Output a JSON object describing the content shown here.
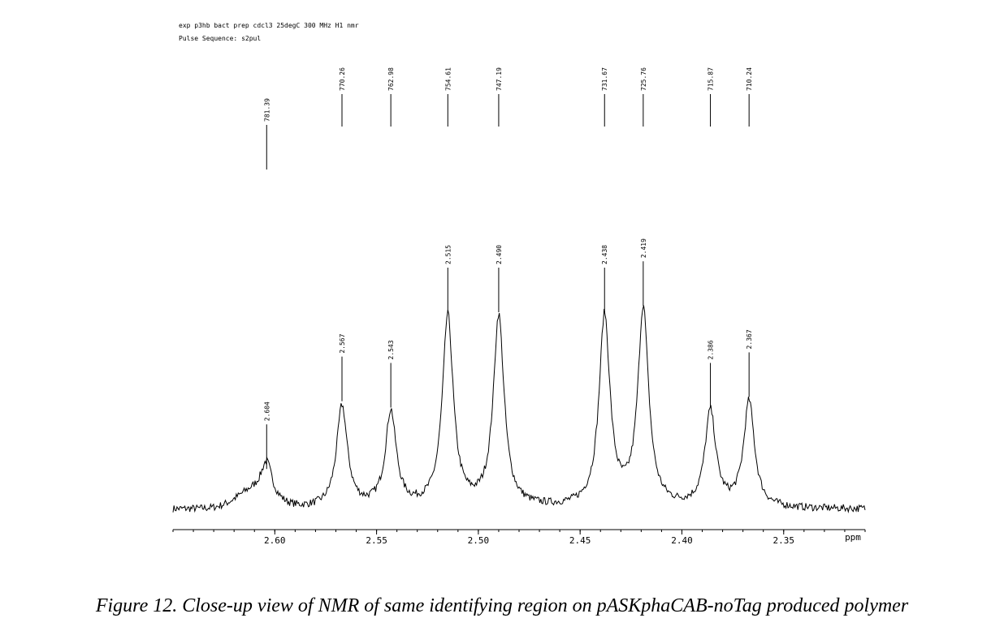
{
  "header": {
    "line1": "exp p3hb bact prep cdcl3 25degC 300 MHz H1 nmr",
    "line2": "Pulse Sequence: s2pul"
  },
  "caption": "Figure 12. Close-up view of NMR of same identifying region on pASKphaCAB-noTag produced polymer",
  "colors": {
    "trace": "#000000",
    "background": "#ffffff"
  },
  "chart_data": {
    "type": "line",
    "title": "",
    "xlabel": "ppm",
    "ylabel": "",
    "xlim": [
      2.65,
      2.31
    ],
    "x_reversed": true,
    "grid": false,
    "x_ticks": [
      2.6,
      2.55,
      2.5,
      2.45,
      2.4,
      2.35
    ],
    "x_tick_labels": [
      "2.60",
      "2.55",
      "2.50",
      "2.45",
      "2.40",
      "2.35"
    ],
    "ylim": [
      0,
      1
    ],
    "y_unit": "relative intensity",
    "baseline": 0.1,
    "peaks": [
      {
        "ppm": 2.604,
        "ppm_label": "2.604",
        "hz_label": "781.39",
        "intensity": 0.26
      },
      {
        "ppm": 2.567,
        "ppm_label": "2.567",
        "hz_label": "770.26",
        "intensity": 0.58
      },
      {
        "ppm": 2.543,
        "ppm_label": "2.543",
        "hz_label": "762.98",
        "intensity": 0.55
      },
      {
        "ppm": 2.515,
        "ppm_label": "2.515",
        "hz_label": "754.61",
        "intensity": 1.0
      },
      {
        "ppm": 2.49,
        "ppm_label": "2.490",
        "hz_label": "747.19",
        "intensity": 1.0
      },
      {
        "ppm": 2.438,
        "ppm_label": "2.438",
        "hz_label": "731.67",
        "intensity": 1.0
      },
      {
        "ppm": 2.419,
        "ppm_label": "2.419",
        "hz_label": "725.76",
        "intensity": 1.03
      },
      {
        "ppm": 2.386,
        "ppm_label": "2.386",
        "hz_label": "715.87",
        "intensity": 0.55
      },
      {
        "ppm": 2.367,
        "ppm_label": "2.367",
        "hz_label": "710.24",
        "intensity": 0.6
      }
    ]
  }
}
